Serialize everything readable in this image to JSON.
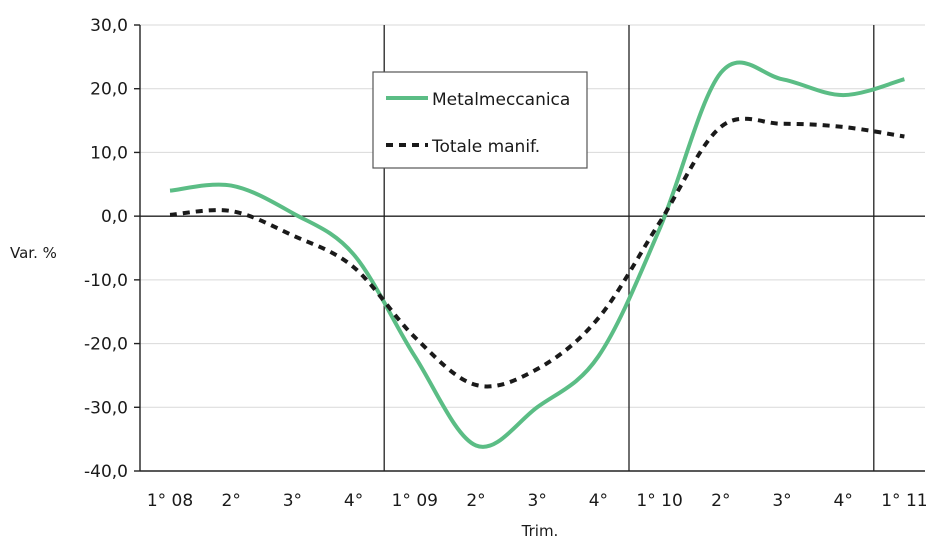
{
  "chart_data": {
    "type": "line",
    "xlabel": "Trim.",
    "ylabel": "Var. %",
    "ylim": [
      -40,
      30
    ],
    "yticks": [
      "30,0",
      "20,0",
      "10,0",
      "0,0",
      "-10,0",
      "-20,0",
      "-30,0",
      "-40,0"
    ],
    "ytick_values": [
      30,
      20,
      10,
      0,
      -10,
      -20,
      -30,
      -40
    ],
    "categories": [
      "1° 08",
      "2°",
      "3°",
      "4°",
      "1° 09",
      "2°",
      "3°",
      "4°",
      "1° 10",
      "2°",
      "3°",
      "4°",
      "1° 11"
    ],
    "grid": "horizontal",
    "year_dividers_after_index": [
      3.5,
      7.5,
      11.5
    ],
    "legend_position": "top-center",
    "series": [
      {
        "name": "Metalmeccanica",
        "style": "solid",
        "color": "#5bbd85",
        "values": [
          4.0,
          4.8,
          0.5,
          -6.0,
          -22.0,
          -36.0,
          -30.0,
          -22.0,
          -2.0,
          22.5,
          21.5,
          19.0,
          21.5
        ]
      },
      {
        "name": "Totale manif.",
        "style": "dashed",
        "color": "#1a1a1a",
        "values": [
          0.2,
          0.8,
          -3.0,
          -8.0,
          -19.0,
          -26.5,
          -24.0,
          -16.0,
          -1.0,
          14.0,
          14.5,
          14.0,
          12.5
        ]
      }
    ]
  }
}
